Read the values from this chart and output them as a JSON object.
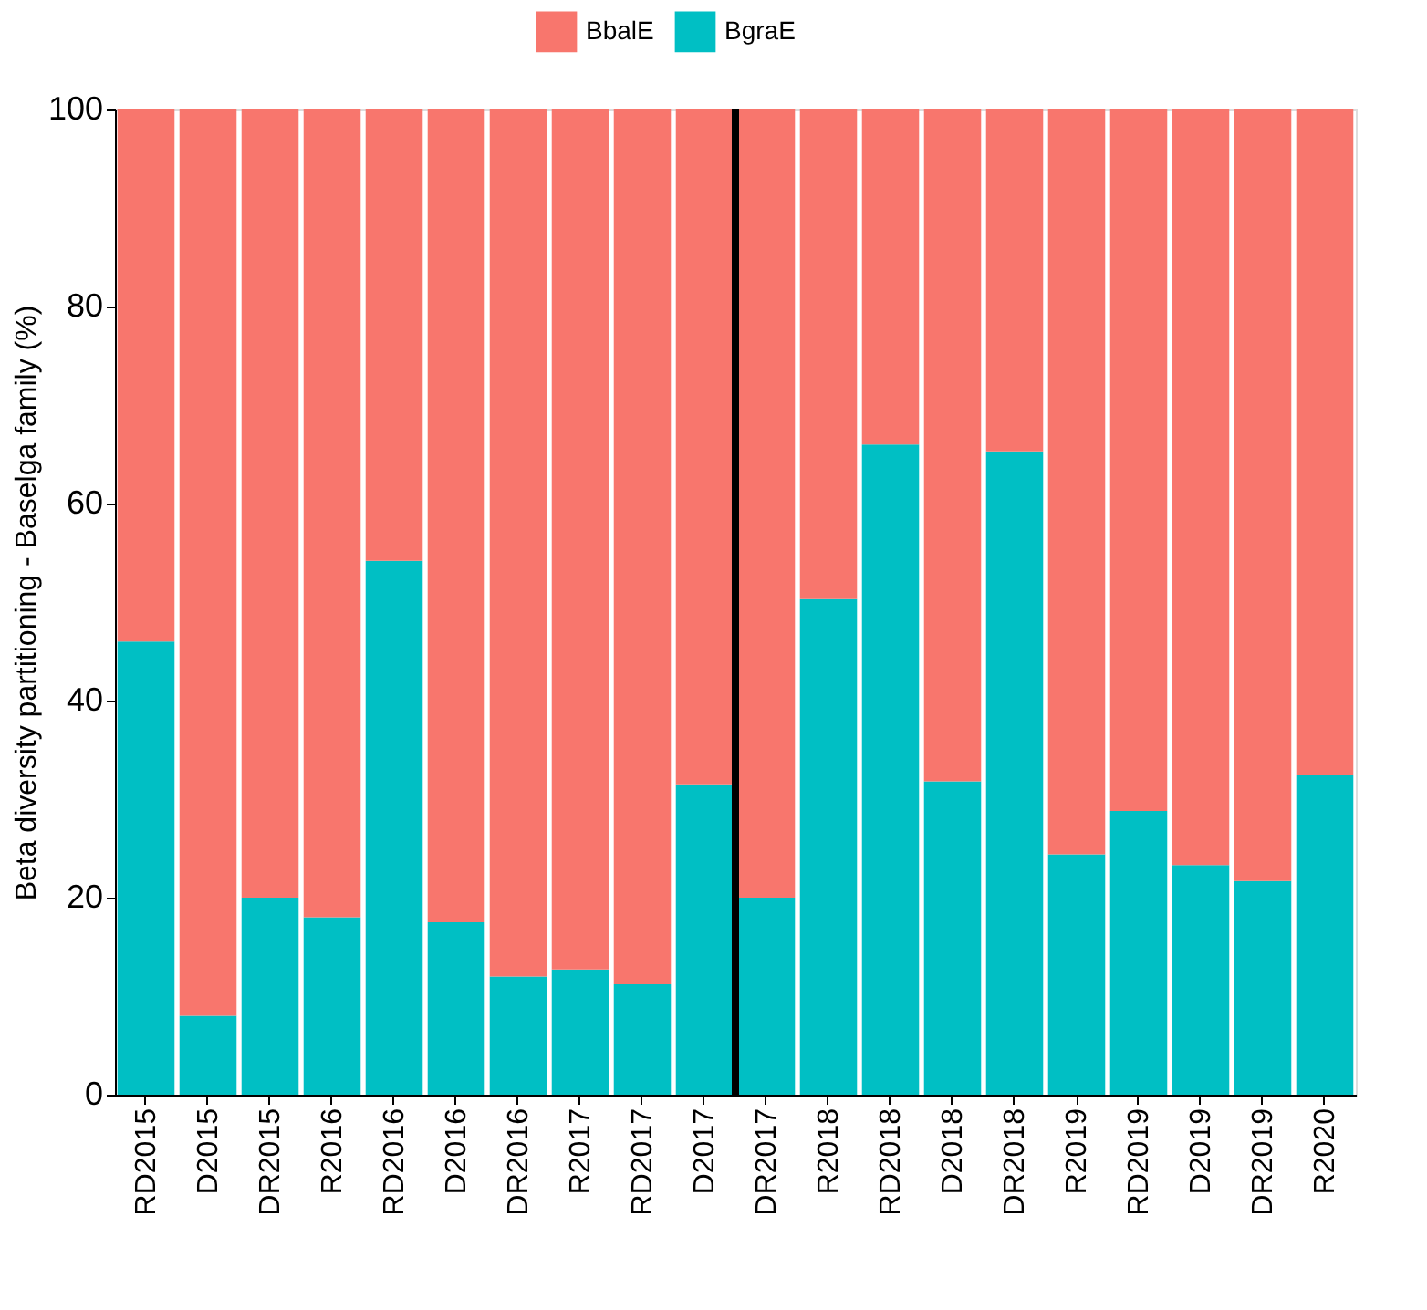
{
  "chart_data": {
    "type": "bar",
    "ylabel": "Beta diversity partitioning - Baselga family (%)",
    "stacked": true,
    "categories": [
      "RD2015",
      "D2015",
      "DR2015",
      "R2016",
      "RD2016",
      "D2016",
      "DR2016",
      "R2017",
      "RD2017",
      "D2017",
      "DR2017",
      "R2018",
      "RD2018",
      "D2018",
      "DR2018",
      "R2019",
      "RD2019",
      "D2019",
      "DR2019",
      "R2020"
    ],
    "series": [
      {
        "name": "BgraE",
        "color": "#00bfc4",
        "values": [
          46,
          8,
          20,
          18,
          54.2,
          17.5,
          12,
          12.7,
          11.2,
          31.5,
          20,
          50.3,
          66,
          31.8,
          65.3,
          24.4,
          28.8,
          23.3,
          21.7,
          32.4
        ]
      },
      {
        "name": "BbalE",
        "color": "#f8766d",
        "values": [
          54,
          92,
          80,
          82,
          45.8,
          82.5,
          88,
          87.3,
          88.8,
          68.5,
          80,
          49.7,
          34,
          68.2,
          34.7,
          75.6,
          71.2,
          76.7,
          78.3,
          67.6
        ]
      }
    ],
    "ylim": [
      0,
      100
    ],
    "yticks": [
      0,
      20,
      40,
      60,
      80,
      100
    ],
    "grid": false,
    "legend": "top"
  }
}
